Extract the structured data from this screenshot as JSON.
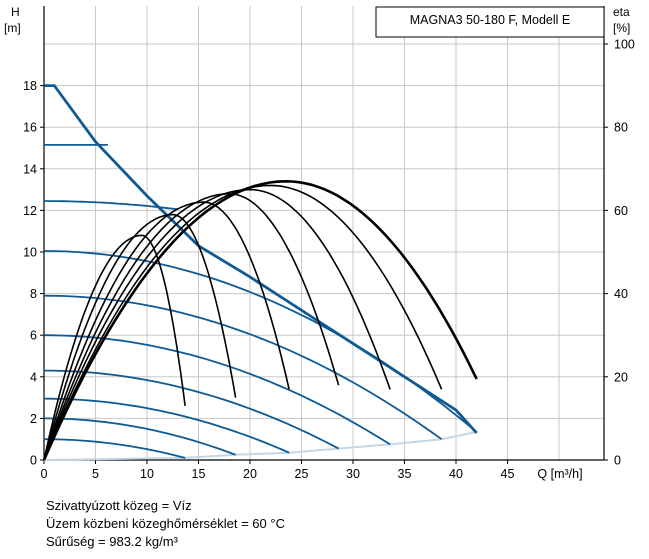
{
  "chart_data": {
    "type": "line",
    "title": "MAGNA3 50-180 F, Modell E",
    "xlabel": "Q [m³/h]",
    "ylabel_left": [
      "H",
      "[m]"
    ],
    "ylabel_right": [
      "eta",
      "[%]"
    ],
    "xlim": [
      0,
      54
    ],
    "ylim_left": [
      0,
      20
    ],
    "ylim_right": [
      0,
      100
    ],
    "x_ticks": [
      0,
      5,
      10,
      15,
      20,
      25,
      30,
      35,
      40,
      45
    ],
    "y_ticks_left": [
      0,
      2,
      4,
      6,
      8,
      10,
      12,
      14,
      16,
      18
    ],
    "y_ticks_right": [
      0,
      20,
      40,
      60,
      80,
      100
    ],
    "grid": true,
    "colors": {
      "head": "#0f5a93",
      "efficiency": "#000000",
      "min_line": "#c3d6e6",
      "grid": "#c8c8c8"
    },
    "max_curve": [
      [
        0,
        18
      ],
      [
        1,
        18
      ],
      [
        5,
        15.3
      ],
      [
        10,
        12.7
      ],
      [
        15,
        10.3
      ],
      [
        20,
        8.8
      ],
      [
        25,
        7.2
      ],
      [
        30,
        5.6
      ],
      [
        35,
        4.0
      ],
      [
        40,
        2.4
      ],
      [
        42,
        1.3
      ]
    ],
    "head_curves": [
      {
        "h0": 1.0,
        "q_end": 13.7,
        "h_end": 0.1
      },
      {
        "h0": 2.0,
        "q_end": 18.6,
        "h_end": 0.25
      },
      {
        "h0": 2.95,
        "q_end": 23.8,
        "h_end": 0.35
      },
      {
        "h0": 4.3,
        "q_end": 28.6,
        "h_end": 0.55
      },
      {
        "h0": 6.0,
        "q_end": 33.6,
        "h_end": 0.75
      },
      {
        "h0": 7.9,
        "q_end": 38.6,
        "h_end": 1.0
      },
      {
        "h0": 10.05,
        "q_end": 42.0,
        "h_end": 1.35
      },
      {
        "h0": 12.45,
        "q_end": 13.0,
        "h_end": 12.05
      },
      {
        "h0": 15.15,
        "q_end": 6.2,
        "h_end": 15.15
      }
    ],
    "min_curve": [
      [
        13.7,
        0.1
      ],
      [
        18.6,
        0.25
      ],
      [
        23.8,
        0.35
      ],
      [
        28.6,
        0.55
      ],
      [
        33.6,
        0.75
      ],
      [
        38.6,
        1.0
      ],
      [
        42.0,
        1.35
      ]
    ],
    "efficiency_curves": [
      {
        "peak_q": 23.5,
        "peak_eta": 67,
        "q_end": 42.0,
        "eta_end": 19.5
      },
      {
        "peak_q": 22.0,
        "peak_eta": 66,
        "q_end": 38.6,
        "eta_end": 17
      },
      {
        "peak_q": 20.0,
        "peak_eta": 65,
        "q_end": 33.6,
        "eta_end": 17
      },
      {
        "peak_q": 18.0,
        "peak_eta": 64,
        "q_end": 28.6,
        "eta_end": 18
      },
      {
        "peak_q": 15.5,
        "peak_eta": 62,
        "q_end": 23.8,
        "eta_end": 17
      },
      {
        "peak_q": 12.5,
        "peak_eta": 59,
        "q_end": 18.6,
        "eta_end": 15
      },
      {
        "peak_q": 9.5,
        "peak_eta": 54,
        "q_end": 13.7,
        "eta_end": 13
      }
    ]
  },
  "notes": [
    "Szivattyúzott közeg = Víz",
    "Üzem közbeni közeghőmérséklet = 60 °C",
    "Sűrűség = 983.2 kg/m³"
  ]
}
